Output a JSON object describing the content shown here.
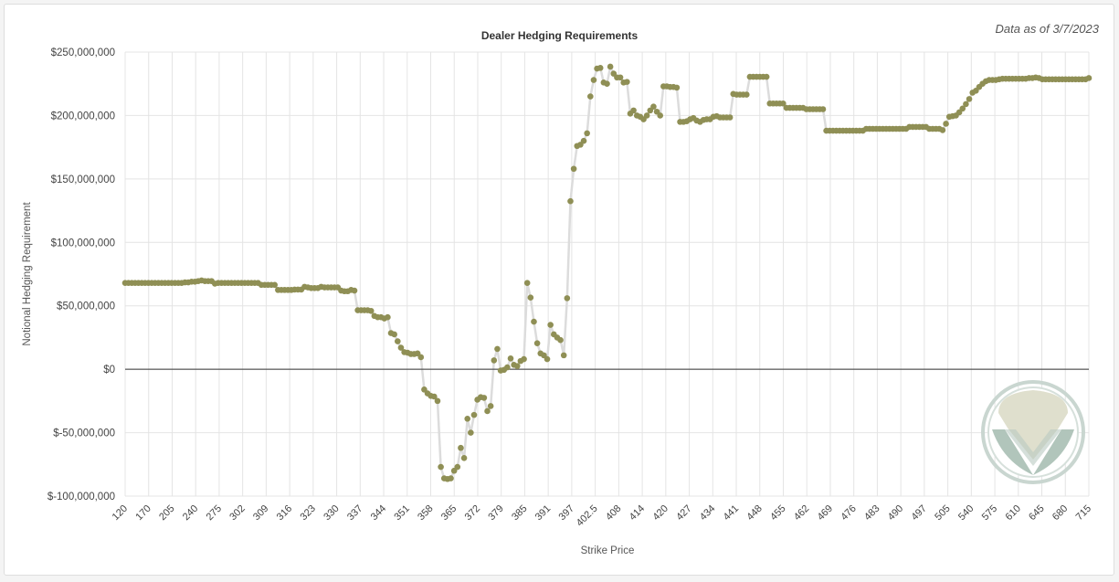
{
  "chart_data": {
    "type": "line",
    "title": "Dealer Hedging Requirements",
    "note": "Data as of 3/7/2023",
    "xlabel": "Strike Price",
    "ylabel": "Notional Hedging Requirement",
    "ylim": [
      -100000000,
      250000000
    ],
    "y_ticks": [
      {
        "value": 250000000,
        "label": "$250,000,000"
      },
      {
        "value": 200000000,
        "label": "$200,000,000"
      },
      {
        "value": 150000000,
        "label": "$150,000,000"
      },
      {
        "value": 100000000,
        "label": "$100,000,000"
      },
      {
        "value": 50000000,
        "label": "$50,000,000"
      },
      {
        "value": 0,
        "label": "$0"
      },
      {
        "value": -50000000,
        "label": "$-50,000,000"
      },
      {
        "value": -100000000,
        "label": "$-100,000,000"
      }
    ],
    "x_ticks": [
      "120",
      "170",
      "205",
      "240",
      "275",
      "302",
      "309",
      "316",
      "323",
      "330",
      "337",
      "344",
      "351",
      "358",
      "365",
      "372",
      "379",
      "385",
      "391",
      "397",
      "402.5",
      "408",
      "414",
      "420",
      "427",
      "434",
      "441",
      "448",
      "455",
      "462",
      "469",
      "476",
      "483",
      "490",
      "497",
      "505",
      "540",
      "575",
      "610",
      "645",
      "680",
      "715"
    ],
    "grid": true,
    "legend": "none",
    "colors": {
      "marker": "#8f8f55",
      "line": "#dcdcdc",
      "grid": "#e4e4e4",
      "zero_line": "#333333"
    },
    "logo": "watermark-logo",
    "values": [
      68000000,
      68000000,
      68000000,
      68000000,
      68000000,
      68000000,
      68000000,
      68000000,
      68000000,
      68000000,
      68000000,
      68000000,
      68000000,
      68000000,
      68000000,
      68000000,
      68000000,
      68000000,
      68500000,
      68500000,
      69000000,
      69000000,
      69500000,
      70000000,
      69500000,
      69500000,
      69500000,
      67500000,
      68000000,
      68000000,
      68000000,
      68000000,
      68000000,
      68000000,
      68000000,
      68000000,
      68000000,
      68000000,
      68000000,
      68000000,
      68000000,
      66500000,
      66500000,
      66500000,
      66500000,
      66500000,
      62500000,
      62500000,
      62500000,
      62500000,
      62500000,
      62800000,
      62800000,
      62800000,
      65000000,
      64500000,
      64000000,
      64000000,
      64000000,
      65000000,
      64500000,
      64500000,
      64500000,
      64500000,
      64500000,
      62000000,
      61500000,
      61500000,
      62500000,
      62000000,
      46500000,
      46500000,
      46500000,
      46500000,
      46000000,
      42000000,
      41000000,
      41000000,
      40000000,
      41000000,
      28500000,
      27500000,
      22000000,
      17000000,
      13500000,
      13000000,
      12000000,
      12000000,
      12500000,
      9500000,
      -16000000,
      -19000000,
      -21000000,
      -21500000,
      -25000000,
      -77000000,
      -86000000,
      -86500000,
      -86000000,
      -80000000,
      -77000000,
      -62000000,
      -70000000,
      -39000000,
      -50000000,
      -36000000,
      -24000000,
      -22000000,
      -22500000,
      -33000000,
      -29000000,
      7000000,
      16000000,
      -1000000,
      -500000,
      1500000,
      8500000,
      3500000,
      2500000,
      6500000,
      8000000,
      68000000,
      56500000,
      37500000,
      20500000,
      12500000,
      11000000,
      8000000,
      35000000,
      27500000,
      25000000,
      23000000,
      11000000,
      56000000,
      132500000,
      158000000,
      176000000,
      177000000,
      180000000,
      186000000,
      215000000,
      228000000,
      237000000,
      237500000,
      226000000,
      225000000,
      238500000,
      233000000,
      230000000,
      230000000,
      226000000,
      226500000,
      201500000,
      204000000,
      200000000,
      199000000,
      197000000,
      200000000,
      204000000,
      207000000,
      203000000,
      200000000,
      223000000,
      223000000,
      222500000,
      222500000,
      222000000,
      195000000,
      195000000,
      195500000,
      197000000,
      198000000,
      196000000,
      195000000,
      196500000,
      197000000,
      197000000,
      199000000,
      199500000,
      198500000,
      198500000,
      198500000,
      198500000,
      217000000,
      216500000,
      216500000,
      216500000,
      216500000,
      230500000,
      230500000,
      230500000,
      230500000,
      230500000,
      230500000,
      209500000,
      209500000,
      209500000,
      209500000,
      209500000,
      206000000,
      206000000,
      206000000,
      206000000,
      206000000,
      206000000,
      205000000,
      205000000,
      205000000,
      205000000,
      205000000,
      205000000,
      188000000,
      188000000,
      188000000,
      188000000,
      188000000,
      188000000,
      188000000,
      188000000,
      188000000,
      188000000,
      188000000,
      188000000,
      189500000,
      189500000,
      189500000,
      189500000,
      189500000,
      189500000,
      189500000,
      189500000,
      189500000,
      189500000,
      189500000,
      189500000,
      189500000,
      191000000,
      191000000,
      191000000,
      191000000,
      191000000,
      191000000,
      189500000,
      189500000,
      189500000,
      189500000,
      188500000,
      193500000,
      199000000,
      199500000,
      200000000,
      202500000,
      205500000,
      209000000,
      213000000,
      218000000,
      219500000,
      222500000,
      225000000,
      227000000,
      228000000,
      228000000,
      228000000,
      228500000,
      229000000,
      229000000,
      229000000,
      229000000,
      229000000,
      229000000,
      229000000,
      229000000,
      229500000,
      229500000,
      230000000,
      229500000,
      228500000,
      228500000,
      228500000,
      228500000,
      228500000,
      228500000,
      228500000,
      228500000,
      228500000,
      228500000,
      228500000,
      228500000,
      228500000,
      228500000,
      229500000
    ]
  }
}
